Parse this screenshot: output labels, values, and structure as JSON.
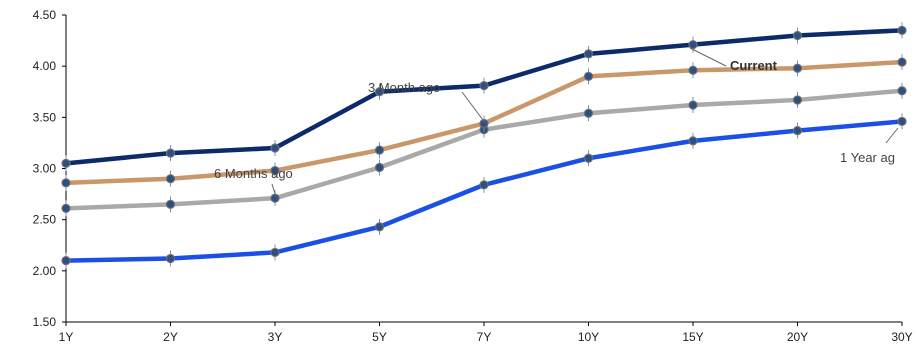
{
  "chart_data": {
    "type": "line",
    "title": "",
    "xlabel": "",
    "ylabel": "",
    "categories": [
      "1Y",
      "2Y",
      "3Y",
      "5Y",
      "7Y",
      "10Y",
      "15Y",
      "20Y",
      "30Y"
    ],
    "ylim": [
      1.5,
      4.5
    ],
    "yticks": [
      "1.50",
      "2.00",
      "2.50",
      "3.00",
      "3.50",
      "4.00",
      "4.50"
    ],
    "grid": false,
    "legend": "none",
    "series": [
      {
        "name": "Current",
        "color": "#0d2a6b",
        "values": [
          3.05,
          3.15,
          3.2,
          3.75,
          3.81,
          4.12,
          4.21,
          4.3,
          4.35
        ]
      },
      {
        "name": "3 Month ago",
        "color": "#c9976a",
        "values": [
          2.86,
          2.9,
          2.98,
          3.18,
          3.44,
          3.9,
          3.96,
          3.98,
          4.04
        ]
      },
      {
        "name": "6 Months ago",
        "color": "#a9a9a9",
        "values": [
          2.61,
          2.65,
          2.71,
          3.01,
          3.38,
          3.54,
          3.62,
          3.67,
          3.76
        ]
      },
      {
        "name": "1 Year ago",
        "color": "#1a50e6",
        "values": [
          2.1,
          2.12,
          2.18,
          2.43,
          2.84,
          3.1,
          3.27,
          3.37,
          3.46
        ]
      }
    ],
    "annotations": [
      {
        "text": "Current",
        "series": 0,
        "point": 6,
        "bold": true
      },
      {
        "text": "3 Month ago",
        "series": 1,
        "point": 4,
        "bold": false
      },
      {
        "text": "6 Months ago",
        "series": 2,
        "point": 2,
        "bold": false
      },
      {
        "text": "1 Year ag",
        "series": 3,
        "point": 8,
        "bold": false
      }
    ]
  }
}
